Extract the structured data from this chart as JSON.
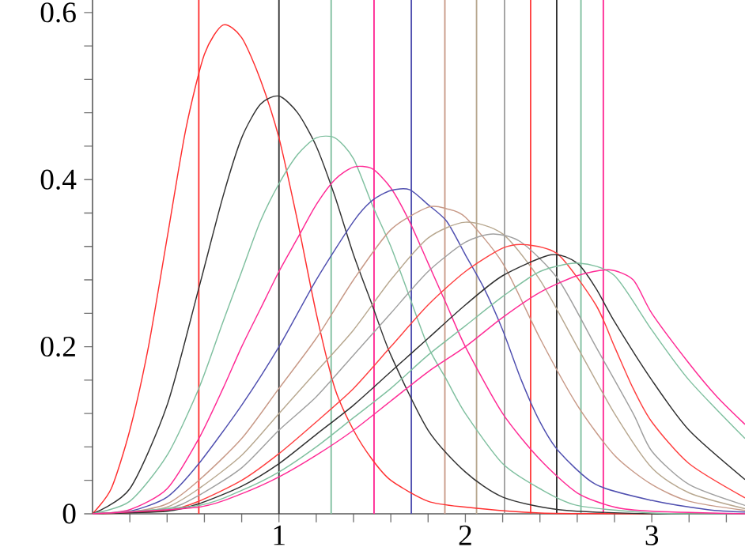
{
  "chart_data": {
    "type": "line",
    "xlim": [
      0,
      3.5
    ],
    "ylim": [
      0,
      0.615
    ],
    "xticks": [
      {
        "value": 0.2,
        "label": null
      },
      {
        "value": 0.4,
        "label": null
      },
      {
        "value": 0.6,
        "label": null
      },
      {
        "value": 0.8,
        "label": null
      },
      1,
      {
        "value": 1.2,
        "label": null
      },
      {
        "value": 1.4,
        "label": null
      },
      {
        "value": 1.6,
        "label": null
      },
      {
        "value": 1.8,
        "label": null
      },
      2,
      {
        "value": 2.2,
        "label": null
      },
      {
        "value": 2.4,
        "label": null
      },
      {
        "value": 2.6,
        "label": null
      },
      {
        "value": 2.8,
        "label": null
      },
      3,
      {
        "value": 3.2,
        "label": null
      },
      {
        "value": 3.4,
        "label": null
      }
    ],
    "yticks": [
      0,
      {
        "value": 0.04,
        "label": null
      },
      {
        "value": 0.08,
        "label": null
      },
      {
        "value": 0.12,
        "label": null
      },
      {
        "value": 0.16,
        "label": null
      },
      0.2,
      {
        "value": 0.24,
        "label": null
      },
      {
        "value": 0.28,
        "label": null
      },
      {
        "value": 0.32,
        "label": null
      },
      {
        "value": 0.36,
        "label": null
      },
      0.4,
      {
        "value": 0.44,
        "label": null
      },
      {
        "value": 0.48,
        "label": null
      },
      {
        "value": 0.52,
        "label": null
      },
      {
        "value": 0.56,
        "label": null
      },
      0.6
    ],
    "series": [
      {
        "color": "#ff3030",
        "x": [
          0,
          0.1,
          0.2,
          0.3,
          0.4,
          0.5,
          0.6,
          0.7,
          0.8,
          0.9,
          1.0,
          1.1,
          1.2,
          1.3,
          1.4,
          1.5,
          1.6,
          1.8,
          2.0,
          2.4,
          3.0,
          3.5
        ],
        "values": [
          0,
          0.03,
          0.1,
          0.2,
          0.33,
          0.46,
          0.55,
          0.585,
          0.57,
          0.52,
          0.45,
          0.35,
          0.24,
          0.15,
          0.1,
          0.065,
          0.04,
          0.015,
          0.008,
          0.001,
          0,
          0
        ]
      },
      {
        "color": "#333333",
        "x": [
          0,
          0.2,
          0.4,
          0.57,
          0.7,
          0.8,
          0.9,
          1.0,
          1.1,
          1.2,
          1.3,
          1.4,
          1.5,
          1.6,
          1.8,
          2.0,
          2.2,
          2.5,
          3.0,
          3.5
        ],
        "values": [
          0,
          0.03,
          0.13,
          0.27,
          0.38,
          0.45,
          0.49,
          0.5,
          0.48,
          0.44,
          0.38,
          0.31,
          0.25,
          0.19,
          0.1,
          0.05,
          0.02,
          0.005,
          0,
          0
        ]
      },
      {
        "color": "#80c0a0",
        "x": [
          0,
          0.2,
          0.4,
          0.57,
          0.7,
          0.8,
          0.9,
          1.0,
          1.1,
          1.2,
          1.3,
          1.4,
          1.5,
          1.6,
          1.7,
          1.8,
          1.9,
          2.0,
          2.2,
          2.4,
          2.6,
          3.0,
          3.5
        ],
        "values": [
          0,
          0.015,
          0.07,
          0.15,
          0.23,
          0.29,
          0.35,
          0.395,
          0.43,
          0.45,
          0.45,
          0.425,
          0.37,
          0.32,
          0.26,
          0.2,
          0.16,
          0.12,
          0.06,
          0.03,
          0.01,
          0.001,
          0
        ]
      },
      {
        "color": "#ff2a95",
        "x": [
          0,
          0.2,
          0.4,
          0.57,
          0.7,
          0.8,
          0.9,
          1.0,
          1.1,
          1.2,
          1.3,
          1.4,
          1.5,
          1.6,
          1.7,
          1.8,
          1.9,
          2.0,
          2.2,
          2.4,
          2.6,
          2.8,
          3.0,
          3.5
        ],
        "values": [
          0,
          0.005,
          0.03,
          0.09,
          0.15,
          0.2,
          0.245,
          0.29,
          0.33,
          0.37,
          0.4,
          0.415,
          0.413,
          0.39,
          0.35,
          0.3,
          0.25,
          0.2,
          0.12,
          0.065,
          0.025,
          0.008,
          0.003,
          0
        ]
      },
      {
        "color": "#5050b0",
        "x": [
          0,
          0.2,
          0.4,
          0.57,
          0.8,
          1.0,
          1.2,
          1.4,
          1.5,
          1.6,
          1.7,
          1.8,
          1.9,
          2.0,
          2.1,
          2.2,
          2.3,
          2.4,
          2.5,
          2.7,
          3.0,
          3.3,
          3.5
        ],
        "values": [
          0,
          0.003,
          0.02,
          0.06,
          0.13,
          0.2,
          0.28,
          0.35,
          0.375,
          0.387,
          0.388,
          0.37,
          0.35,
          0.31,
          0.27,
          0.22,
          0.16,
          0.11,
          0.075,
          0.035,
          0.016,
          0.005,
          0.002
        ]
      },
      {
        "color": "#c89a88",
        "x": [
          0,
          0.2,
          0.4,
          0.57,
          0.8,
          1.0,
          1.2,
          1.4,
          1.6,
          1.8,
          1.9,
          2.0,
          2.2,
          2.4,
          2.6,
          2.8,
          3.0,
          3.2,
          3.5
        ],
        "values": [
          0,
          0.002,
          0.012,
          0.04,
          0.09,
          0.15,
          0.21,
          0.28,
          0.34,
          0.367,
          0.365,
          0.355,
          0.3,
          0.21,
          0.13,
          0.07,
          0.035,
          0.015,
          0.004
        ]
      },
      {
        "color": "#b8a890",
        "x": [
          0,
          0.2,
          0.4,
          0.57,
          0.8,
          1.0,
          1.2,
          1.4,
          1.6,
          1.8,
          2.0,
          2.2,
          2.4,
          2.6,
          2.8,
          3.0,
          3.2,
          3.5
        ],
        "values": [
          0,
          0.001,
          0.008,
          0.03,
          0.07,
          0.12,
          0.17,
          0.22,
          0.28,
          0.33,
          0.349,
          0.335,
          0.28,
          0.2,
          0.12,
          0.055,
          0.025,
          0.006
        ]
      },
      {
        "color": "#a0a0a0",
        "x": [
          0,
          0.4,
          0.57,
          0.8,
          1.0,
          1.2,
          1.4,
          1.6,
          1.8,
          2.0,
          2.15,
          2.3,
          2.5,
          2.7,
          2.9,
          3.0,
          3.2,
          3.5
        ],
        "values": [
          0,
          0.006,
          0.022,
          0.055,
          0.1,
          0.14,
          0.19,
          0.24,
          0.29,
          0.325,
          0.335,
          0.325,
          0.28,
          0.2,
          0.12,
          0.075,
          0.035,
          0.01
        ]
      },
      {
        "color": "#ff4040",
        "x": [
          0,
          0.4,
          0.57,
          0.8,
          1.0,
          1.2,
          1.4,
          1.6,
          1.8,
          2.0,
          2.2,
          2.33,
          2.5,
          2.7,
          2.8,
          2.9,
          3.0,
          3.2,
          3.5
        ],
        "values": [
          0,
          0.004,
          0.015,
          0.04,
          0.072,
          0.11,
          0.15,
          0.2,
          0.25,
          0.29,
          0.318,
          0.322,
          0.31,
          0.25,
          0.2,
          0.15,
          0.11,
          0.06,
          0.019
        ]
      },
      {
        "color": "#303030",
        "x": [
          0,
          0.4,
          0.57,
          0.8,
          1.0,
          1.2,
          1.4,
          1.6,
          1.8,
          2.0,
          2.2,
          2.46,
          2.6,
          2.7,
          2.8,
          3.0,
          3.2,
          3.5
        ],
        "values": [
          0,
          0.003,
          0.012,
          0.033,
          0.06,
          0.095,
          0.13,
          0.17,
          0.21,
          0.25,
          0.285,
          0.31,
          0.3,
          0.27,
          0.23,
          0.16,
          0.1,
          0.041
        ]
      },
      {
        "color": "#80c0a0",
        "x": [
          0,
          0.57,
          0.8,
          1.0,
          1.2,
          1.4,
          1.6,
          1.8,
          2.0,
          2.2,
          2.4,
          2.61,
          2.8,
          3.0,
          3.2,
          3.5
        ],
        "values": [
          0,
          0.01,
          0.028,
          0.05,
          0.08,
          0.115,
          0.15,
          0.19,
          0.225,
          0.26,
          0.29,
          0.3,
          0.285,
          0.22,
          0.16,
          0.09
        ]
      },
      {
        "color": "#ff2a95",
        "x": [
          0,
          0.57,
          0.8,
          1.0,
          1.2,
          1.4,
          1.6,
          1.8,
          2.0,
          2.2,
          2.4,
          2.6,
          2.77,
          2.9,
          3.0,
          3.2,
          3.35,
          3.5
        ],
        "values": [
          0,
          0.008,
          0.024,
          0.044,
          0.07,
          0.1,
          0.135,
          0.17,
          0.2,
          0.235,
          0.265,
          0.285,
          0.292,
          0.28,
          0.24,
          0.18,
          0.14,
          0.107
        ]
      }
    ],
    "ref_lines": [
      {
        "axis": "x",
        "value": 0.57,
        "color": "#ff3030"
      },
      {
        "axis": "x",
        "value": 1.0,
        "color": "#333333"
      },
      {
        "axis": "x",
        "value": 1.28,
        "color": "#80c0a0"
      },
      {
        "axis": "x",
        "value": 1.51,
        "color": "#ff2a95"
      },
      {
        "axis": "x",
        "value": 1.71,
        "color": "#5050b0"
      },
      {
        "axis": "x",
        "value": 1.89,
        "color": "#c89a88"
      },
      {
        "axis": "x",
        "value": 2.06,
        "color": "#b8a890"
      },
      {
        "axis": "x",
        "value": 2.21,
        "color": "#a0a0a0"
      },
      {
        "axis": "x",
        "value": 2.35,
        "color": "#ff4040"
      },
      {
        "axis": "x",
        "value": 2.49,
        "color": "#303030"
      },
      {
        "axis": "x",
        "value": 2.62,
        "color": "#80c0a0"
      },
      {
        "axis": "x",
        "value": 2.74,
        "color": "#ff2a95"
      }
    ]
  }
}
